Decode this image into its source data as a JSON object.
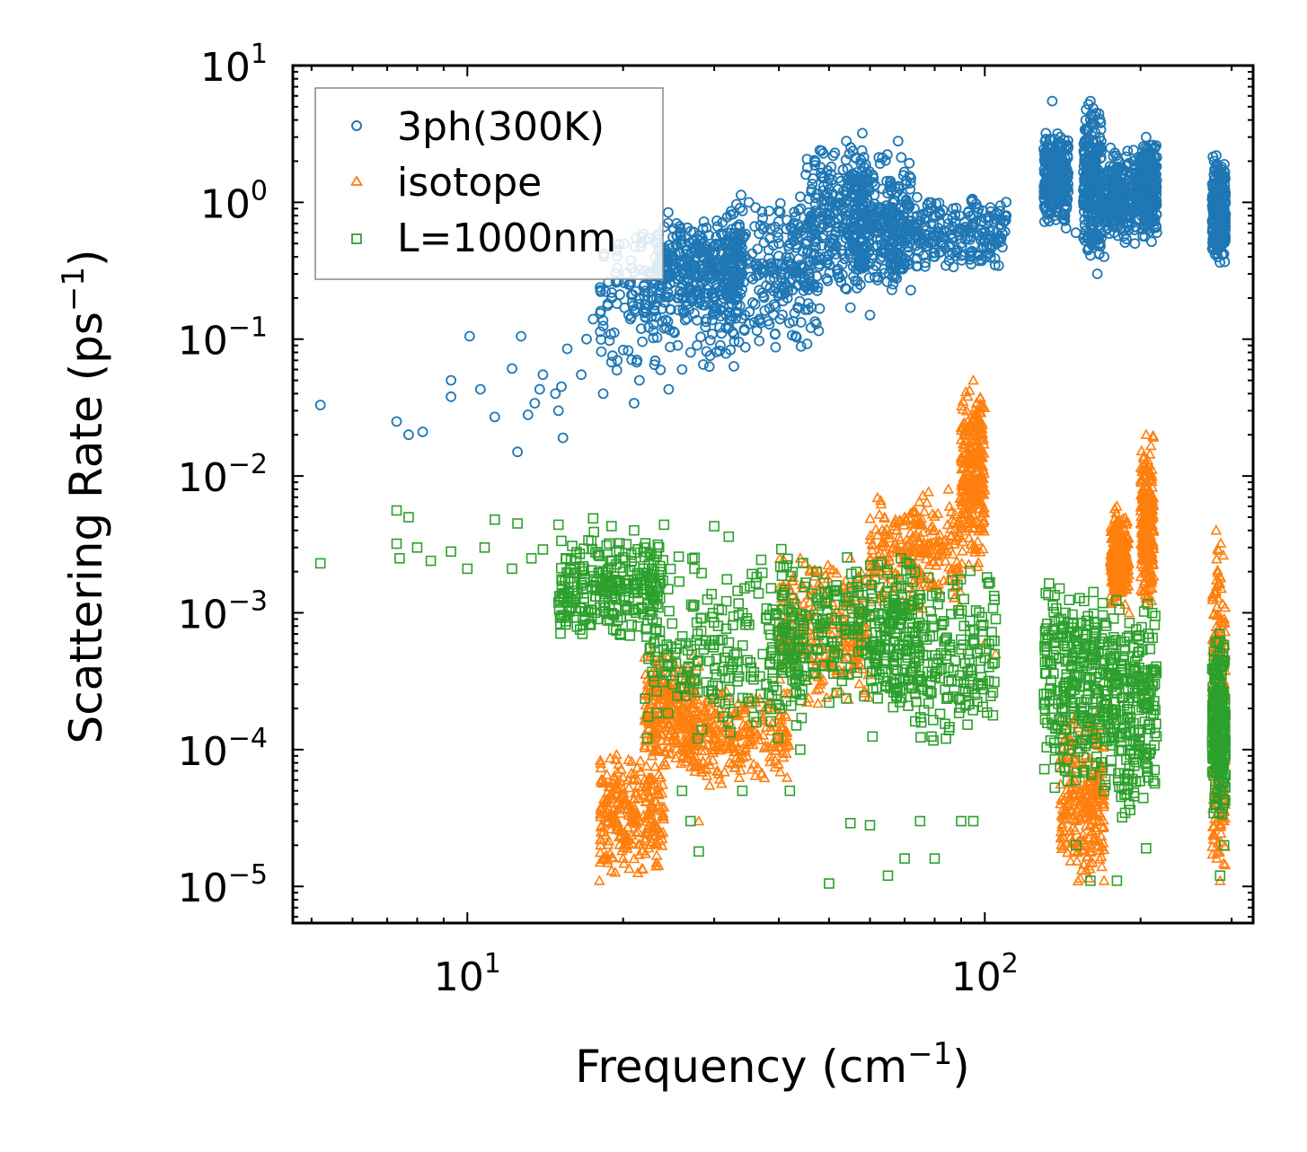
{
  "chart_data": {
    "type": "scatter",
    "title": "",
    "xlabel": "Frequency (cm",
    "xlabel_sup": "−1",
    "xlabel_end": ")",
    "ylabel": "Scattering Rate (ps",
    "ylabel_sup": "−1",
    "ylabel_end": ")",
    "xscale": "log",
    "yscale": "log",
    "xlim": [
      4.6,
      330
    ],
    "ylim": [
      5.4e-06,
      10
    ],
    "x_ticks": [
      {
        "value": 10,
        "base": "10",
        "exp": "1"
      },
      {
        "value": 100,
        "base": "10",
        "exp": "2"
      }
    ],
    "y_ticks": [
      {
        "value": 10,
        "base": "10",
        "exp": "1"
      },
      {
        "value": 1,
        "base": "10",
        "exp": "0"
      },
      {
        "value": 0.1,
        "base": "10",
        "exp": "−1"
      },
      {
        "value": 0.01,
        "base": "10",
        "exp": "−2"
      },
      {
        "value": 0.001,
        "base": "10",
        "exp": "−3"
      },
      {
        "value": 0.0001,
        "base": "10",
        "exp": "−4"
      },
      {
        "value": 1e-05,
        "base": "10",
        "exp": "−5"
      }
    ],
    "legend_position": "top-left",
    "series": [
      {
        "name": "3ph(300K)",
        "marker": "circle",
        "color": "#1f77b4",
        "points": [
          [
            5.2,
            0.033
          ],
          [
            7.3,
            0.025
          ],
          [
            7.7,
            0.02
          ],
          [
            8.2,
            0.021
          ],
          [
            9.3,
            0.05
          ],
          [
            9.3,
            0.038
          ],
          [
            10.1,
            0.105
          ],
          [
            10.6,
            0.043
          ],
          [
            11.3,
            0.027
          ],
          [
            12.2,
            0.061
          ],
          [
            12.5,
            0.015
          ],
          [
            12.7,
            0.105
          ],
          [
            13.1,
            0.028
          ],
          [
            13.5,
            0.034
          ],
          [
            13.8,
            0.043
          ],
          [
            14.0,
            0.055
          ],
          [
            14.8,
            0.04
          ],
          [
            15.0,
            0.03
          ],
          [
            15.2,
            0.045
          ],
          [
            15.3,
            0.019
          ],
          [
            15.6,
            0.085
          ],
          [
            16.6,
            0.055
          ],
          [
            17.0,
            0.1
          ],
          [
            17.5,
            0.14
          ],
          [
            18.3,
            0.04
          ],
          [
            19.0,
            0.2
          ],
          [
            19.5,
            0.07
          ],
          [
            20.5,
            0.15
          ],
          [
            21.0,
            0.034
          ],
          [
            21.5,
            0.05
          ],
          [
            22.0,
            0.25
          ],
          [
            22.5,
            0.3
          ],
          [
            23.0,
            0.065
          ],
          [
            24.0,
            0.12
          ],
          [
            24.5,
            0.043
          ],
          [
            25.0,
            0.4
          ],
          [
            25.5,
            0.09
          ],
          [
            26.0,
            0.06
          ],
          [
            27.0,
            0.08
          ],
          [
            28.0,
            0.3
          ],
          [
            29.0,
            0.14
          ],
          [
            30.0,
            0.2
          ],
          [
            31.0,
            0.11
          ],
          [
            32.0,
            0.5
          ],
          [
            33.0,
            0.25
          ],
          [
            34.0,
            0.3
          ],
          [
            35.0,
            1.0
          ],
          [
            36.0,
            0.18
          ],
          [
            38.0,
            0.35
          ],
          [
            40.0,
            0.5
          ],
          [
            42.0,
            0.26
          ],
          [
            44.0,
            1.1
          ],
          [
            46.0,
            0.7
          ],
          [
            47.0,
            2.0
          ],
          [
            48.0,
            2.4
          ],
          [
            50.0,
            1.5
          ],
          [
            52.0,
            0.3
          ],
          [
            54.0,
            2.8
          ],
          [
            55.0,
            0.17
          ],
          [
            57.0,
            0.8
          ],
          [
            58.0,
            3.2
          ],
          [
            60.0,
            0.15
          ],
          [
            62.0,
            0.6
          ],
          [
            64.0,
            0.45
          ],
          [
            66.0,
            1.2
          ],
          [
            68.0,
            2.8
          ],
          [
            70.0,
            0.5
          ],
          [
            72.0,
            1.5
          ],
          [
            75.0,
            0.5
          ],
          [
            78.0,
            1.0
          ],
          [
            80.0,
            0.4
          ],
          [
            85.0,
            0.7
          ],
          [
            90.0,
            0.5
          ],
          [
            95.0,
            0.8
          ],
          [
            100.0,
            0.6
          ],
          [
            105.0,
            0.75
          ],
          [
            110.0,
            0.8
          ],
          [
            132.0,
            1.5
          ],
          [
            135.0,
            5.5
          ],
          [
            140.0,
            3.0
          ],
          [
            145.0,
            1.2
          ],
          [
            150.0,
            0.6
          ],
          [
            155.0,
            1.0
          ],
          [
            160.0,
            5.5
          ],
          [
            165.0,
            0.3
          ],
          [
            170.0,
            0.4
          ],
          [
            175.0,
            2.5
          ],
          [
            185.0,
            1.0
          ],
          [
            195.0,
            0.5
          ],
          [
            205.0,
            3.0
          ],
          [
            215.0,
            0.6
          ],
          [
            280.0,
            2.2
          ],
          [
            285.0,
            0.6
          ],
          [
            290.0,
            1.0
          ]
        ],
        "clusters": [
          {
            "x": [
              18,
              34
            ],
            "y": [
              0.05,
              0.9
            ]
          },
          {
            "x": [
              23,
              34
            ],
            "y": [
              0.15,
              0.85
            ]
          },
          {
            "x": [
              32,
              48
            ],
            "y": [
              0.08,
              1.2
            ]
          },
          {
            "x": [
              45,
              60
            ],
            "y": [
              0.2,
              2.8
            ]
          },
          {
            "x": [
              55,
              72
            ],
            "y": [
              0.2,
              2.5
            ]
          },
          {
            "x": [
              65,
              110
            ],
            "y": [
              0.3,
              1.2
            ]
          },
          {
            "x": [
              130,
              145
            ],
            "y": [
              0.6,
              3.5
            ]
          },
          {
            "x": [
              155,
              168
            ],
            "y": [
              0.35,
              5.5
            ]
          },
          {
            "x": [
              170,
              200
            ],
            "y": [
              0.5,
              2.5
            ]
          },
          {
            "x": [
              200,
              215
            ],
            "y": [
              0.5,
              3.0
            ]
          },
          {
            "x": [
              275,
              292
            ],
            "y": [
              0.35,
              2.2
            ]
          }
        ]
      },
      {
        "name": "isotope",
        "marker": "triangle",
        "color": "#ff7f0e",
        "points": [
          [
            18.0,
            1.1e-05
          ],
          [
            19.0,
            1.3e-05
          ],
          [
            20.0,
            1.6e-05
          ],
          [
            21.0,
            3e-05
          ],
          [
            22.0,
            6e-05
          ],
          [
            23.0,
            0.0001
          ],
          [
            24.0,
            0.0002
          ],
          [
            25.0,
            0.0003
          ],
          [
            26.0,
            0.00014
          ],
          [
            27.0,
            0.0001
          ],
          [
            28.0,
            3e-05
          ],
          [
            30.0,
            0.0001
          ],
          [
            32.0,
            0.00012
          ],
          [
            35.0,
            0.00013
          ],
          [
            38.0,
            0.0002
          ],
          [
            41.0,
            0.0008
          ],
          [
            44.0,
            0.0025
          ],
          [
            46.0,
            0.002
          ],
          [
            50.0,
            0.0015
          ],
          [
            55.0,
            0.0025
          ],
          [
            60.0,
            0.002
          ],
          [
            64.0,
            0.005
          ],
          [
            70.0,
            0.005
          ],
          [
            80.0,
            0.004
          ],
          [
            85.0,
            0.008
          ],
          [
            90.0,
            0.005
          ],
          [
            95.0,
            0.05
          ],
          [
            97.0,
            0.02
          ],
          [
            100.0,
            0.0006
          ],
          [
            105.0,
            0.0005
          ],
          [
            140.0,
            4e-05
          ],
          [
            160.0,
            2e-05
          ],
          [
            170.0,
            1.1e-05
          ],
          [
            180.0,
            0.006
          ],
          [
            190.0,
            0.001
          ],
          [
            205.0,
            0.02
          ],
          [
            210.0,
            0.0003
          ],
          [
            280.0,
            0.004
          ],
          [
            285.0,
            1.1e-05
          ],
          [
            290.0,
            3e-05
          ]
        ],
        "clusters": [
          {
            "x": [
              18,
              24
            ],
            "y": [
              1.1e-05,
              0.0001
            ]
          },
          {
            "x": [
              22,
              28
            ],
            "y": [
              6e-05,
              0.0006
            ]
          },
          {
            "x": [
              26,
              42
            ],
            "y": [
              5e-05,
              0.0003
            ]
          },
          {
            "x": [
              40,
              60
            ],
            "y": [
              0.0002,
              0.003
            ]
          },
          {
            "x": [
              60,
              90
            ],
            "y": [
              0.001,
              0.008
            ]
          },
          {
            "x": [
              90,
              100
            ],
            "y": [
              0.002,
              0.05
            ]
          },
          {
            "x": [
              140,
              170
            ],
            "y": [
              1e-05,
              0.0002
            ]
          },
          {
            "x": [
              175,
              190
            ],
            "y": [
              0.001,
              0.006
            ]
          },
          {
            "x": [
              200,
              212
            ],
            "y": [
              0.001,
              0.02
            ]
          },
          {
            "x": [
              275,
              292
            ],
            "y": [
              1e-05,
              0.004
            ]
          }
        ]
      },
      {
        "name": "L=1000nm",
        "marker": "square",
        "color": "#2ca02c",
        "points": [
          [
            5.2,
            0.0023
          ],
          [
            7.3,
            0.0056
          ],
          [
            7.7,
            0.005
          ],
          [
            7.3,
            0.0032
          ],
          [
            7.4,
            0.0025
          ],
          [
            8.0,
            0.003
          ],
          [
            8.5,
            0.0024
          ],
          [
            9.3,
            0.0028
          ],
          [
            10.0,
            0.0021
          ],
          [
            10.8,
            0.003
          ],
          [
            11.3,
            0.0048
          ],
          [
            12.2,
            0.0021
          ],
          [
            12.5,
            0.0045
          ],
          [
            13.3,
            0.0025
          ],
          [
            14.0,
            0.0029
          ],
          [
            15.0,
            0.0044
          ],
          [
            15.5,
            0.0025
          ],
          [
            16.5,
            0.0027
          ],
          [
            17.5,
            0.0049
          ],
          [
            18.0,
            0.0026
          ],
          [
            19.0,
            0.0043
          ],
          [
            20.0,
            0.002
          ],
          [
            21.0,
            0.004
          ],
          [
            22.0,
            0.0015
          ],
          [
            24.0,
            0.0044
          ],
          [
            25.0,
            0.0003
          ],
          [
            26.0,
            5e-05
          ],
          [
            27.0,
            3e-05
          ],
          [
            28.0,
            1.8e-05
          ],
          [
            30.0,
            0.0043
          ],
          [
            32.0,
            0.0036
          ],
          [
            34.0,
            5e-05
          ],
          [
            42.0,
            5e-05
          ],
          [
            44.0,
            0.0001
          ],
          [
            50.0,
            1.05e-05
          ],
          [
            55.0,
            2.9e-05
          ],
          [
            60.0,
            2.8e-05
          ],
          [
            65.0,
            1.2e-05
          ],
          [
            70.0,
            1.6e-05
          ],
          [
            75.0,
            3e-05
          ],
          [
            80.0,
            1.6e-05
          ],
          [
            90.0,
            3e-05
          ],
          [
            95.0,
            3e-05
          ],
          [
            105.0,
            0.0009
          ],
          [
            140.0,
            0.0001
          ],
          [
            150.0,
            2e-05
          ],
          [
            160.0,
            1.1e-05
          ],
          [
            170.0,
            0.0005
          ],
          [
            180.0,
            1.1e-05
          ],
          [
            190.0,
            4e-05
          ],
          [
            205.0,
            1.9e-05
          ],
          [
            280.0,
            4e-05
          ],
          [
            285.0,
            1.2e-05
          ],
          [
            290.0,
            2e-05
          ]
        ],
        "clusters": [
          {
            "x": [
              15,
              24
            ],
            "y": [
              0.0006,
              0.004
            ]
          },
          {
            "x": [
              22,
              45
            ],
            "y": [
              0.0001,
              0.003
            ]
          },
          {
            "x": [
              40,
              75
            ],
            "y": [
              0.0002,
              0.003
            ]
          },
          {
            "x": [
              60,
              105
            ],
            "y": [
              0.0001,
              0.0025
            ]
          },
          {
            "x": [
              130,
              170
            ],
            "y": [
              5e-05,
              0.002
            ]
          },
          {
            "x": [
              170,
              215
            ],
            "y": [
              3e-05,
              0.0015
            ]
          },
          {
            "x": [
              275,
              292
            ],
            "y": [
              3e-05,
              0.0008
            ]
          }
        ]
      }
    ]
  }
}
